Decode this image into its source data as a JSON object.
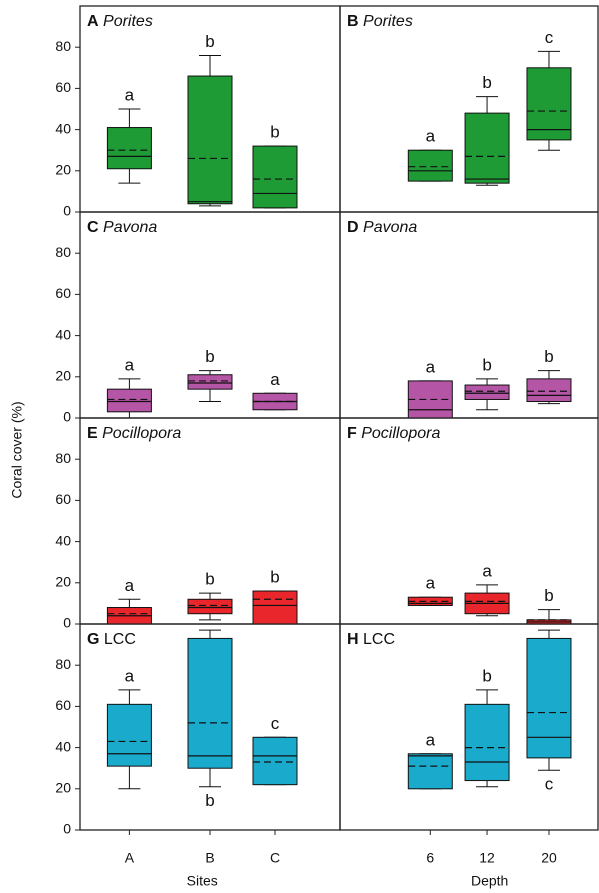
{
  "ylabel": "Coral cover (%)",
  "chart_data": [
    {
      "type": "box",
      "panel": "A",
      "title": "Porites",
      "title_italic": true,
      "color": "#1e9b34",
      "ylim": [
        0,
        100
      ],
      "yticks": [
        0,
        20,
        40,
        60,
        80
      ],
      "boxes": [
        {
          "whisker_low": 14,
          "q1": 21,
          "median": 27,
          "mean": 30,
          "q3": 41,
          "whisker_high": 50,
          "letter": "a"
        },
        {
          "whisker_low": 3,
          "q1": 4,
          "median": 5,
          "mean": 26,
          "q3": 66,
          "whisker_high": 76,
          "letter": "b"
        },
        {
          "whisker_low": 2,
          "q1": 2,
          "median": 9,
          "mean": 16,
          "q3": 32,
          "whisker_high": 32,
          "letter": "b"
        }
      ]
    },
    {
      "type": "box",
      "panel": "B",
      "title": "Porites",
      "title_italic": true,
      "color": "#1e9b34",
      "ylim": [
        0,
        100
      ],
      "boxes": [
        {
          "whisker_low": 15,
          "q1": 15,
          "median": 20,
          "mean": 22,
          "q3": 30,
          "whisker_high": 30,
          "letter": "a"
        },
        {
          "whisker_low": 13,
          "q1": 14,
          "median": 16,
          "mean": 27,
          "q3": 48,
          "whisker_high": 56,
          "letter": "b"
        },
        {
          "whisker_low": 30,
          "q1": 35,
          "median": 40,
          "mean": 49,
          "q3": 70,
          "whisker_high": 78,
          "letter": "c"
        }
      ]
    },
    {
      "type": "box",
      "panel": "C",
      "title": "Pavona",
      "title_italic": true,
      "color": "#b455a6",
      "ylim": [
        0,
        100
      ],
      "yticks": [
        0,
        20,
        40,
        60,
        80
      ],
      "boxes": [
        {
          "whisker_low": 0,
          "q1": 3,
          "median": 8,
          "mean": 9,
          "q3": 14,
          "whisker_high": 19,
          "letter": "a"
        },
        {
          "whisker_low": 8,
          "q1": 14,
          "median": 17,
          "mean": 18,
          "q3": 21,
          "whisker_high": 23,
          "letter": "b"
        },
        {
          "whisker_low": 4,
          "q1": 4,
          "median": 8,
          "mean": 8,
          "q3": 12,
          "whisker_high": 12,
          "letter": "a"
        }
      ]
    },
    {
      "type": "box",
      "panel": "D",
      "title": "Pavona",
      "title_italic": true,
      "color": "#b455a6",
      "ylim": [
        0,
        100
      ],
      "boxes": [
        {
          "whisker_low": 0,
          "q1": 0,
          "median": 4,
          "mean": 9,
          "q3": 18,
          "whisker_high": 18,
          "letter": "a"
        },
        {
          "whisker_low": 4,
          "q1": 9,
          "median": 12,
          "mean": 13,
          "q3": 16,
          "whisker_high": 19,
          "letter": "b"
        },
        {
          "whisker_low": 7,
          "q1": 8,
          "median": 11,
          "mean": 13,
          "q3": 19,
          "whisker_high": 23,
          "letter": "b"
        }
      ]
    },
    {
      "type": "box",
      "panel": "E",
      "title": "Pocillopora",
      "title_italic": true,
      "color": "#e8262b",
      "ylim": [
        0,
        100
      ],
      "yticks": [
        0,
        20,
        40,
        60,
        80
      ],
      "boxes": [
        {
          "whisker_low": 0,
          "q1": 0,
          "median": 4,
          "mean": 5,
          "q3": 8,
          "whisker_high": 12,
          "letter": "a"
        },
        {
          "whisker_low": 2,
          "q1": 5,
          "median": 8,
          "mean": 9,
          "q3": 12,
          "whisker_high": 15,
          "letter": "b"
        },
        {
          "whisker_low": 0,
          "q1": 0,
          "median": 9,
          "mean": 12,
          "q3": 16,
          "whisker_high": 16,
          "letter": "b"
        }
      ]
    },
    {
      "type": "box",
      "panel": "F",
      "title": "Pocillopora",
      "title_italic": true,
      "color": "#e8262b",
      "ylim": [
        0,
        100
      ],
      "boxes": [
        {
          "whisker_low": 9,
          "q1": 9,
          "median": 10,
          "mean": 11,
          "q3": 13,
          "whisker_high": 13,
          "letter": "a"
        },
        {
          "whisker_low": 4,
          "q1": 5,
          "median": 10,
          "mean": 11,
          "q3": 15,
          "whisker_high": 19,
          "letter": "a"
        },
        {
          "whisker_low": 0,
          "q1": 0,
          "median": 1,
          "mean": 2,
          "q3": 2,
          "whisker_high": 7,
          "letter": "b"
        }
      ]
    },
    {
      "type": "box",
      "panel": "G",
      "title": "LCC",
      "title_italic": false,
      "color": "#1aabcc",
      "ylim": [
        0,
        100
      ],
      "yticks": [
        0,
        20,
        40,
        60,
        80
      ],
      "xlabel": "Sites",
      "categories": [
        "A",
        "B",
        "C"
      ],
      "boxes": [
        {
          "whisker_low": 20,
          "q1": 31,
          "median": 37,
          "mean": 43,
          "q3": 61,
          "whisker_high": 68,
          "letter": "a"
        },
        {
          "whisker_low": 21,
          "q1": 30,
          "median": 36,
          "mean": 52,
          "q3": 93,
          "whisker_high": 97,
          "letter": "b"
        },
        {
          "whisker_low": 22,
          "q1": 22,
          "median": 36,
          "mean": 33,
          "q3": 45,
          "whisker_high": 45,
          "letter": "c"
        }
      ]
    },
    {
      "type": "box",
      "panel": "H",
      "title": "LCC",
      "title_italic": false,
      "color": "#1aabcc",
      "ylim": [
        0,
        100
      ],
      "xlabel": "Depth",
      "categories": [
        "6",
        "12",
        "20"
      ],
      "boxes": [
        {
          "whisker_low": 20,
          "q1": 20,
          "median": 36,
          "mean": 31,
          "q3": 37,
          "whisker_high": 37,
          "letter": "a"
        },
        {
          "whisker_low": 21,
          "q1": 24,
          "median": 33,
          "mean": 40,
          "q3": 61,
          "whisker_high": 68,
          "letter": "b"
        },
        {
          "whisker_low": 29,
          "q1": 35,
          "median": 45,
          "mean": 57,
          "q3": 93,
          "whisker_high": 97,
          "letter": "c"
        }
      ]
    }
  ]
}
